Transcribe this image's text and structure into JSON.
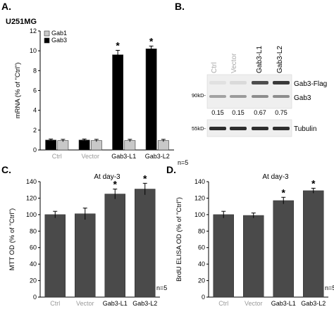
{
  "figure": {
    "panels": [
      {
        "letter": "A.",
        "cell_line": "U251MG"
      },
      {
        "letter": "B."
      },
      {
        "letter": "C."
      },
      {
        "letter": "D."
      }
    ]
  },
  "chart_data": [
    {
      "panel": "A",
      "type": "bar",
      "categories": [
        "Ctrl",
        "Vector",
        "Gab3-L1",
        "Gab3-L2"
      ],
      "series": [
        {
          "name": "Gab1",
          "color": "#c8c8c8",
          "values": [
            0.95,
            0.95,
            0.95,
            0.95
          ],
          "errors": [
            0.12,
            0.12,
            0.12,
            0.12
          ]
        },
        {
          "name": "Gab3",
          "color": "#000000",
          "values": [
            1.0,
            1.0,
            9.6,
            10.2
          ],
          "errors": [
            0.1,
            0.1,
            0.45,
            0.28
          ]
        }
      ],
      "significance": [
        "",
        "",
        "*",
        "*"
      ],
      "ylabel": "mRNA (% of \"Ctrl\")",
      "ylim": [
        0,
        12
      ],
      "yticks": [
        0,
        2,
        4,
        6,
        8,
        10,
        12
      ],
      "n_label": "n=5",
      "legend": "top-left"
    },
    {
      "panel": "C",
      "type": "bar",
      "title": "At day-3",
      "categories": [
        "Ctrl",
        "Vector",
        "Gab3-L1",
        "Gab3-L2"
      ],
      "series": [
        {
          "color": "#4a4a4a",
          "values": [
            100,
            101,
            125,
            131
          ],
          "errors": [
            4,
            7,
            6,
            7
          ]
        }
      ],
      "significance": [
        "",
        "",
        "*",
        "*"
      ],
      "ylabel": "MTT OD (% of \"Ctrl\")",
      "ylim": [
        0,
        140
      ],
      "yticks": [
        0,
        20,
        40,
        60,
        80,
        100,
        120,
        140
      ],
      "n_label": "n=5"
    },
    {
      "panel": "D",
      "type": "bar",
      "title": "At day-3",
      "categories": [
        "Ctrl",
        "Vector",
        "Gab3-L1",
        "Gab3-L2"
      ],
      "series": [
        {
          "color": "#4a4a4a",
          "values": [
            100,
            99,
            117,
            129
          ],
          "errors": [
            4,
            3,
            4,
            3
          ]
        }
      ],
      "significance": [
        "",
        "",
        "*",
        "*"
      ],
      "ylabel": "BrdU ELISA OD (% of \"Ctrl\")",
      "ylim": [
        0,
        140
      ],
      "yticks": [
        0,
        20,
        40,
        60,
        80,
        100,
        120,
        140
      ],
      "n_label": "n=5"
    }
  ],
  "blot": {
    "lanes": [
      "Ctrl",
      "Vector",
      "Gab3-L1",
      "Gab3-L2"
    ],
    "band_labels": [
      "Gab3-Flag",
      "Gab3",
      "Tubulin"
    ],
    "mw_markers": [
      "90kD-",
      "55kD-"
    ],
    "ratios": [
      "0.15",
      "0.15",
      "0.67",
      "0.75"
    ],
    "flag_band_intensity": [
      0.05,
      0.08,
      0.75,
      0.85
    ],
    "gab3_band_intensity": [
      0.35,
      0.38,
      0.45,
      0.45
    ],
    "tubulin_band_intensity": [
      0.9,
      0.9,
      0.9,
      0.9
    ]
  }
}
